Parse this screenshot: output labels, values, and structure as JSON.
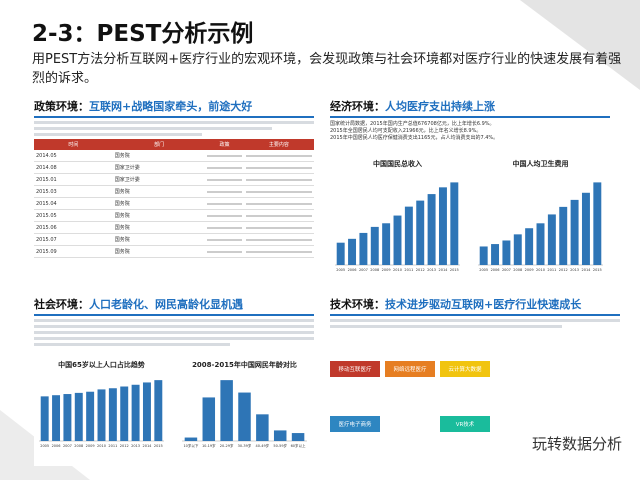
{
  "header": {
    "title": "2-3：PEST分析示例",
    "subtitle": "用PEST方法分析互联网+医疗行业的宏观环境，会发现政策与社会环境都对医疗行业的快速发展有着强烈的诉求。"
  },
  "policy": {
    "label": "政策环境：",
    "heading": "互联网+战略国家牵头，前途大好",
    "columns": [
      "时间",
      "部门",
      "政策",
      "主要内容"
    ],
    "rows": [
      [
        "2014.05",
        "国务院"
      ],
      [
        "2014.08",
        "国家卫计委"
      ],
      [
        "2015.01",
        "国家卫计委"
      ],
      [
        "2015.03",
        "国务院"
      ],
      [
        "2015.04",
        "国务院"
      ],
      [
        "2015.05",
        "国务院"
      ],
      [
        "2015.06",
        "国务院"
      ],
      [
        "2015.07",
        "国务院"
      ],
      [
        "2015.09",
        "国务院"
      ]
    ]
  },
  "economy": {
    "label": "经济环境：",
    "heading": "人均医疗支出持续上涨",
    "lines": [
      "国家统计局数据，2015年国内生产总值676708亿元，比上年增长6.9%。",
      "2015年全国居民人均可支配收入21966元，比上年名义增长8.9%。",
      "2015年中国居民人均医疗保健消费支出1165元，占人均消费支出的7.4%。"
    ],
    "charts": [
      {
        "title": "中国国民总收入",
        "categories": [
          "2005",
          "2006",
          "2007",
          "2008",
          "2009",
          "2010",
          "2011",
          "2012",
          "2013",
          "2014",
          "2015"
        ],
        "values": [
          18.5,
          21.7,
          26.6,
          31.6,
          34.6,
          41.0,
          48.4,
          53.4,
          58.8,
          64.4,
          68.5
        ],
        "color": "#2e75b6"
      },
      {
        "title": "中国人均卫生费用",
        "categories": [
          "2005",
          "2006",
          "2007",
          "2008",
          "2009",
          "2010",
          "2011",
          "2012",
          "2013",
          "2014",
          "2015"
        ],
        "values": [
          662,
          748,
          876,
          1095,
          1314,
          1490,
          1807,
          2077,
          2327,
          2581,
          2952
        ],
        "color": "#2e75b6"
      }
    ]
  },
  "social": {
    "label": "社会环境：",
    "heading": "人口老龄化、网民高龄化显机遇",
    "charts": [
      {
        "title": "中国65岁以上人口占比趋势",
        "categories": [
          "2005",
          "2006",
          "2007",
          "2008",
          "2009",
          "2010",
          "2011",
          "2012",
          "2013",
          "2014",
          "2015"
        ],
        "values": [
          7.7,
          7.9,
          8.1,
          8.3,
          8.5,
          8.9,
          9.1,
          9.4,
          9.7,
          10.1,
          10.5
        ],
        "color": "#2e75b6"
      },
      {
        "title": "2008-2015年中国网民年龄对比",
        "categories": [
          "10岁以下",
          "10-19岁",
          "20-29岁",
          "30-39岁",
          "40-49岁",
          "50-59岁",
          "60岁以上"
        ],
        "values": [
          1.7,
          21.4,
          29.9,
          23.8,
          13.1,
          5.2,
          3.9
        ],
        "color": "#2e75b6"
      }
    ]
  },
  "tech": {
    "label": "技术环境：",
    "heading": "技术进步驱动互联网+医疗行业快速成长",
    "nodes": [
      "移动互联医疗",
      "网络远程医疗",
      "云计算大数据",
      "医疗电子商务",
      "VR技术"
    ]
  },
  "watermark": "玩转数据分析"
}
